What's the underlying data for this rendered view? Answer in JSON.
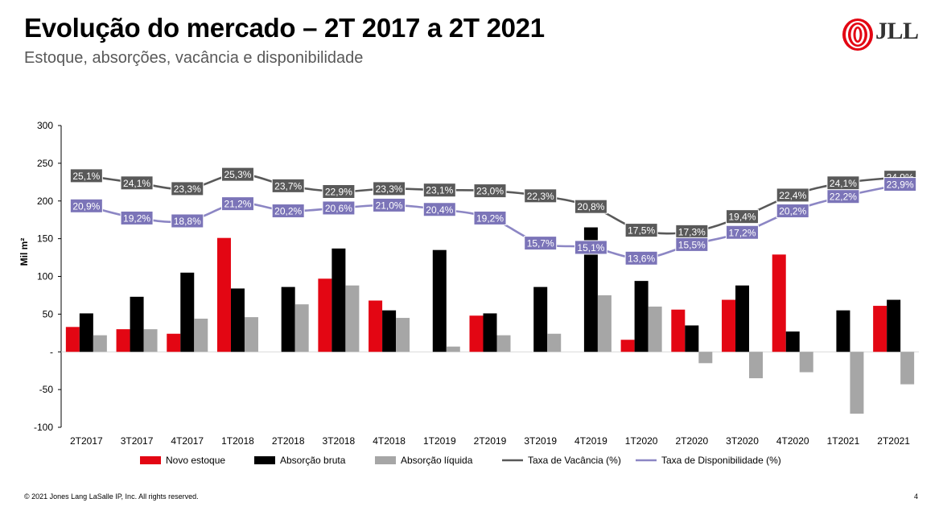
{
  "header": {
    "title": "Evolução do mercado – 2T 2017 a 2T 2021",
    "subtitle": "Estoque, absorções, vacância e disponibilidade",
    "logo_text": "JLL"
  },
  "footer": {
    "copyright": "© 2021 Jones Lang LaSalle IP, Inc. All rights reserved.",
    "page_number": "4"
  },
  "colors": {
    "novo_estoque": "#e30613",
    "absorcao_bruta": "#000000",
    "absorcao_liquida": "#a6a6a6",
    "vacancia_line": "#595959",
    "disponibilidade_line": "#8c86c4",
    "vacancia_label_bg": "#595959",
    "disponibilidade_label_bg": "#7b74b8",
    "logo_red": "#e30613"
  },
  "chart_data": {
    "type": "bar",
    "ylabel": "Mil m²",
    "ylim": [
      -100,
      300
    ],
    "yticks": [
      300,
      250,
      200,
      150,
      100,
      50,
      0,
      -50,
      -100
    ],
    "ytick_labels": [
      "300",
      "250",
      "200",
      "150",
      "100",
      "50",
      "-",
      "-50",
      "-100"
    ],
    "categories": [
      "2T2017",
      "3T2017",
      "4T2017",
      "1T2018",
      "2T2018",
      "3T2018",
      "4T2018",
      "1T2019",
      "2T2019",
      "3T2019",
      "4T2019",
      "1T2020",
      "2T2020",
      "3T2020",
      "4T2020",
      "1T2021",
      "2T2021"
    ],
    "series": [
      {
        "name": "Novo estoque",
        "type": "bar",
        "values": [
          33,
          30,
          24,
          151,
          0,
          97,
          68,
          0,
          48,
          0,
          0,
          16,
          56,
          69,
          129,
          0,
          61
        ]
      },
      {
        "name": "Absorção bruta",
        "type": "bar",
        "values": [
          51,
          73,
          105,
          84,
          86,
          137,
          55,
          135,
          51,
          86,
          165,
          94,
          35,
          88,
          27,
          55,
          69
        ]
      },
      {
        "name": "Absorção líquida",
        "type": "bar",
        "values": [
          22,
          30,
          44,
          46,
          63,
          88,
          45,
          7,
          22,
          24,
          75,
          60,
          -15,
          -35,
          -27,
          -82,
          -43
        ]
      },
      {
        "name": "Taxa de Vacância (%)",
        "type": "line",
        "values": [
          25.1,
          24.1,
          23.3,
          25.3,
          23.7,
          22.9,
          23.3,
          23.1,
          23.0,
          22.3,
          20.8,
          17.5,
          17.3,
          19.4,
          22.4,
          24.1,
          24.9
        ],
        "labels": [
          "25,1%",
          "24,1%",
          "23,3%",
          "25,3%",
          "23,7%",
          "22,9%",
          "23,3%",
          "23,1%",
          "23,0%",
          "22,3%",
          "20,8%",
          "17,5%",
          "17,3%",
          "19,4%",
          "22,4%",
          "24,1%",
          "24,9%"
        ]
      },
      {
        "name": "Taxa de Disponibilidade (%)",
        "type": "line",
        "values": [
          20.9,
          19.2,
          18.8,
          21.2,
          20.2,
          20.6,
          21.0,
          20.4,
          19.2,
          15.7,
          15.1,
          13.6,
          15.5,
          17.2,
          20.2,
          22.2,
          23.9
        ],
        "labels": [
          "20,9%",
          "19,2%",
          "18,8%",
          "21,2%",
          "20,2%",
          "20,6%",
          "21,0%",
          "20,4%",
          "19,2%",
          "15,7%",
          "15,1%",
          "13,6%",
          "15,5%",
          "17,2%",
          "20,2%",
          "22,2%",
          "23,9%"
        ]
      }
    ],
    "legend": {
      "position": "bottom",
      "entries": [
        "Novo estoque",
        "Absorção bruta",
        "Absorção líquida",
        "Taxa de Vacância (%)",
        "Taxa de Disponibilidade (%)"
      ]
    }
  }
}
